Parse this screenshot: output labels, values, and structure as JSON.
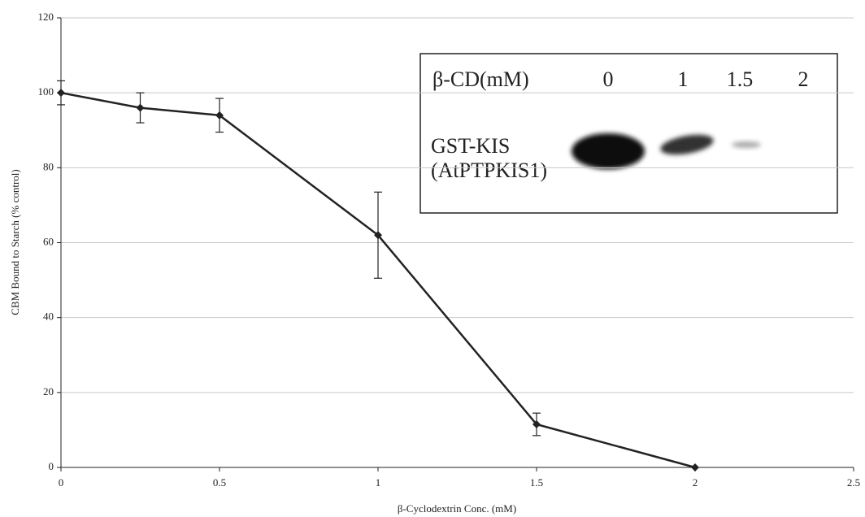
{
  "chart_data": {
    "type": "line",
    "x_label": "β-Cyclodextrin Conc. (mM)",
    "y_label": "CBM Bound to Starch (% control)",
    "x": [
      0,
      0.25,
      0.5,
      1,
      1.5,
      2
    ],
    "values": [
      100,
      96,
      94,
      62,
      11.5,
      0
    ],
    "errors": [
      3.2,
      4,
      4.5,
      11.5,
      3,
      null
    ],
    "color": "#222222",
    "xlim": [
      0,
      2.5
    ],
    "xticks": [
      0,
      0.5,
      1,
      1.5,
      2,
      2.5
    ],
    "ylim": [
      0,
      120
    ],
    "yticks": [
      0,
      20,
      40,
      60,
      80,
      100,
      120
    ],
    "grid": true,
    "inset": {
      "header": "β-CD(mM)",
      "lanes": [
        "0",
        "1",
        "1.5",
        "2"
      ],
      "labels": [
        "GST-KIS",
        "(AtPTPKIS1)"
      ]
    }
  }
}
